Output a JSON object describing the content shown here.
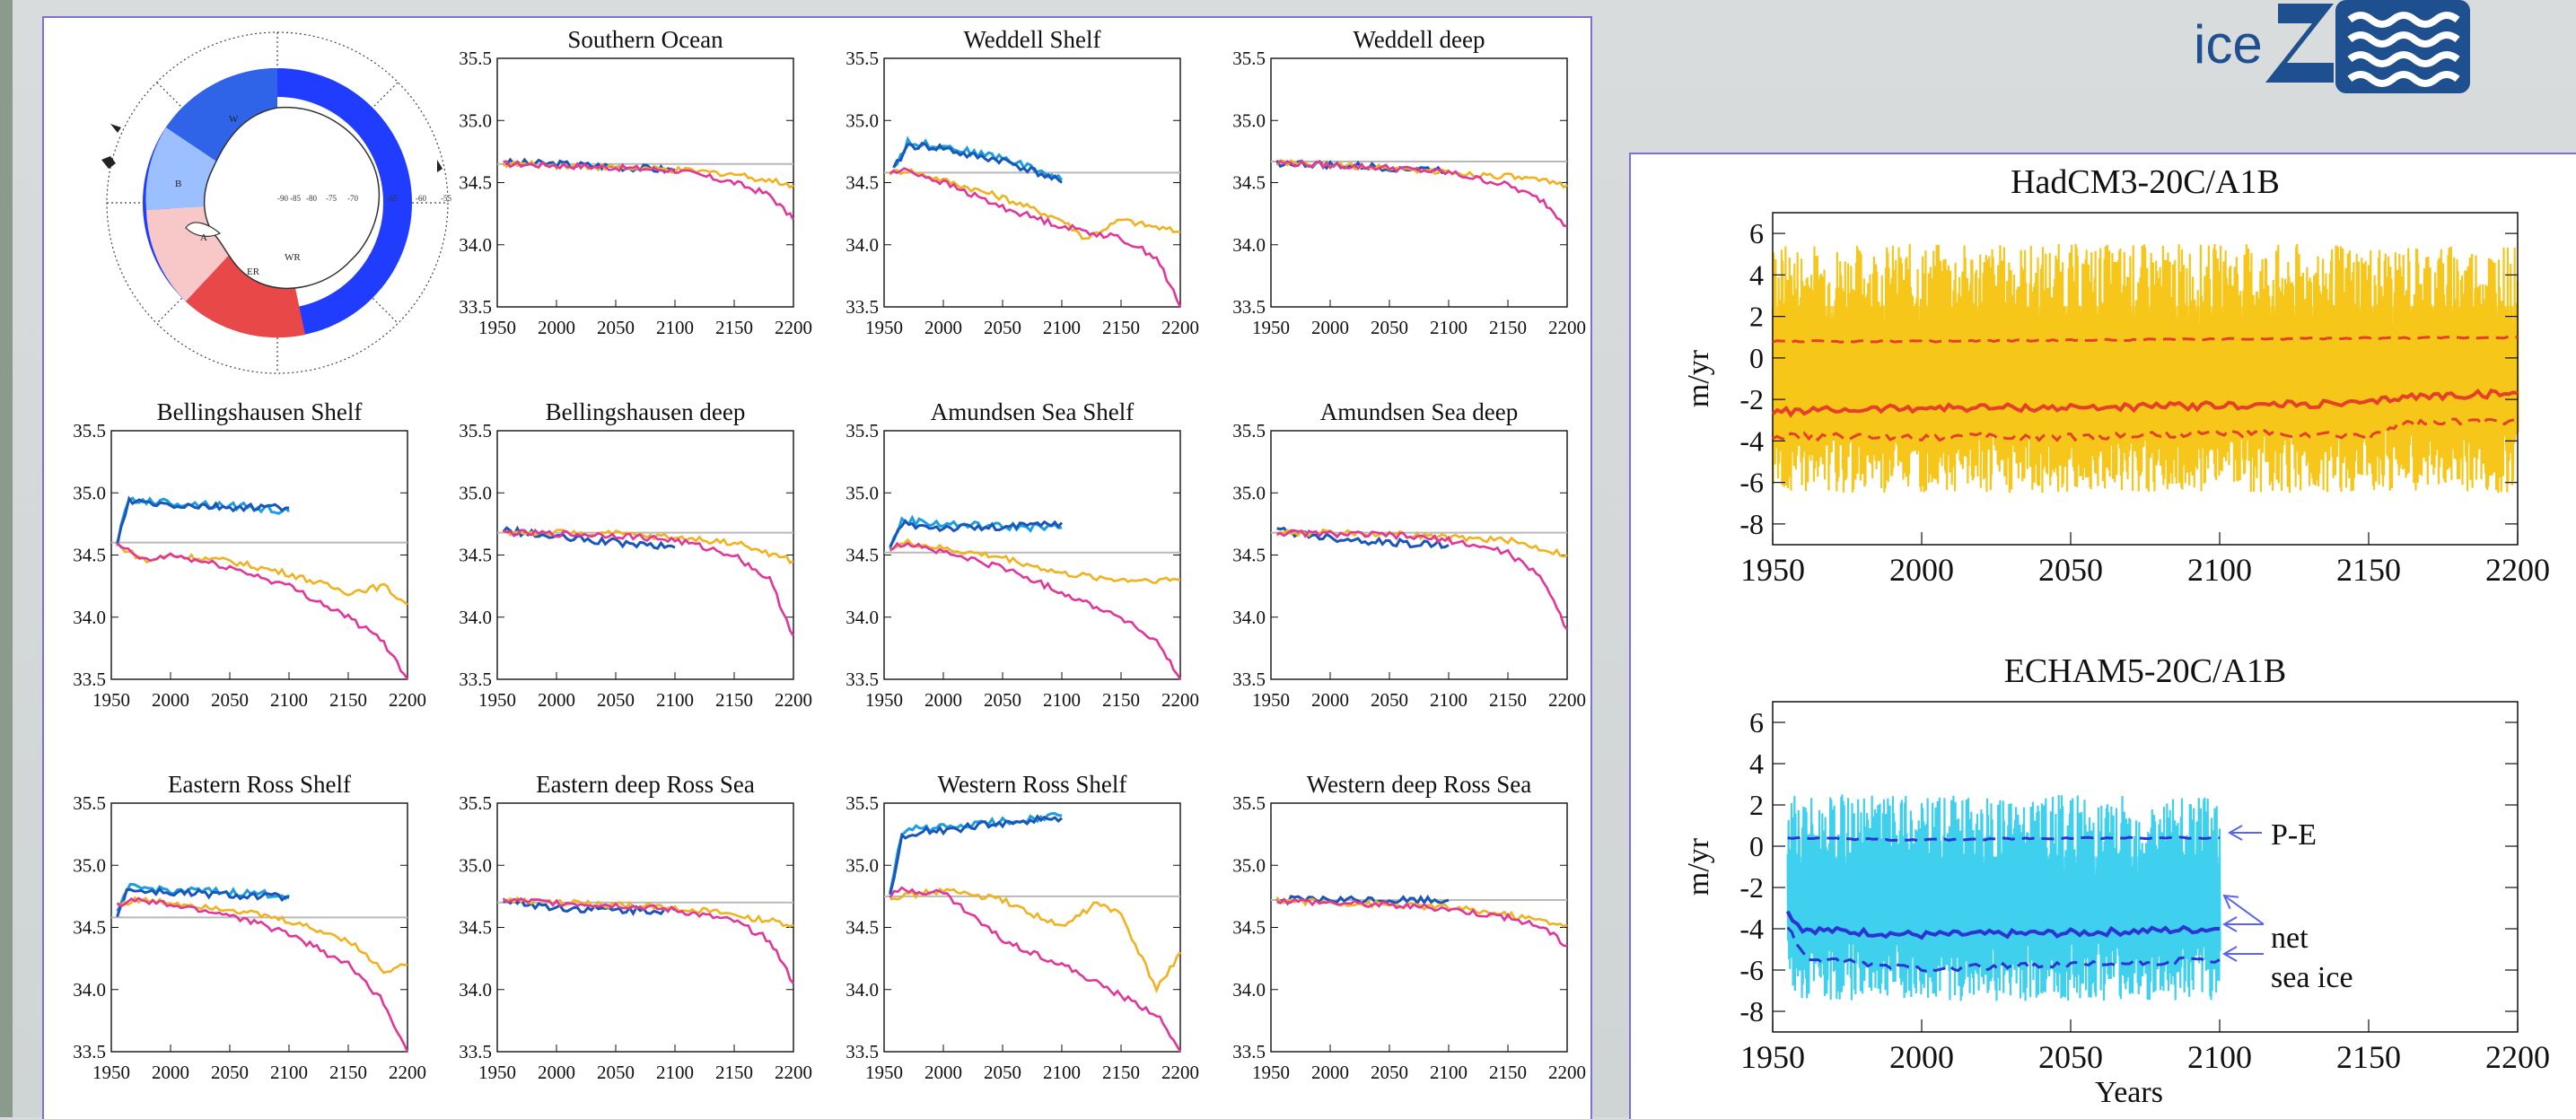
{
  "colors": {
    "historical_model": "#1c9fe0",
    "historical_obs": "#1a55b8",
    "scenario_a": "#f0b21e",
    "scenario_b": "#e0389a",
    "initial": "#e03a2a",
    "reference": "#b9b9b9",
    "had_band": "#f6c61a",
    "had_lines": "#e4402a",
    "echam_band": "#3fd0ee",
    "echam_lines": "#2a35d4",
    "map_ocean": "#1f3cff",
    "map_weddell": "#2f63e8",
    "map_bell": "#9cc0ff",
    "map_amundsen": "#f8c8c8",
    "map_ross": "#e84848"
  },
  "map": {
    "sector_labels": [
      "W",
      "B",
      "A",
      "ER",
      "WR"
    ],
    "lat_labels": [
      "-90",
      "-85",
      "-80",
      "-75",
      "-70",
      "-65",
      "-60",
      "-55"
    ]
  },
  "small_axes": {
    "y_ticks": [
      "35.5",
      "35.0",
      "34.5",
      "34.0",
      "33.5"
    ],
    "x_ticks": [
      "1950",
      "2000",
      "2050",
      "2100",
      "2150",
      "2200"
    ]
  },
  "chart_data": [
    {
      "type": "line",
      "title": "Southern Ocean",
      "xlim": [
        1950,
        2200
      ],
      "ylim": [
        33.5,
        35.5
      ],
      "ref": 34.65,
      "series": [
        {
          "key": "historical_obs",
          "x": [
            1955,
            2000,
            2050,
            2100
          ],
          "values": [
            34.66,
            34.65,
            34.63,
            34.6
          ]
        },
        {
          "key": "scenario_a",
          "x": [
            1955,
            2000,
            2050,
            2100,
            2150,
            2200
          ],
          "values": [
            34.65,
            34.64,
            34.62,
            34.6,
            34.57,
            34.48
          ]
        },
        {
          "key": "scenario_b",
          "x": [
            1955,
            2000,
            2050,
            2100,
            2150,
            2180,
            2200
          ],
          "values": [
            34.65,
            34.64,
            34.62,
            34.6,
            34.5,
            34.4,
            34.2
          ]
        }
      ]
    },
    {
      "type": "line",
      "title": "Weddell Shelf",
      "xlim": [
        1950,
        2200
      ],
      "ylim": [
        33.5,
        35.5
      ],
      "ref": 34.58,
      "series": [
        {
          "key": "historical_model",
          "x": [
            1958,
            1970,
            2000,
            2020,
            2050,
            2080,
            2100
          ],
          "values": [
            34.62,
            34.82,
            34.8,
            34.75,
            34.7,
            34.6,
            34.52
          ]
        },
        {
          "key": "historical_obs",
          "x": [
            1958,
            1970,
            2000,
            2020,
            2050,
            2080,
            2100
          ],
          "values": [
            34.6,
            34.8,
            34.78,
            34.72,
            34.68,
            34.58,
            34.5
          ]
        },
        {
          "key": "scenario_a",
          "x": [
            1955,
            1970,
            2000,
            2050,
            2100,
            2120,
            2150,
            2200
          ],
          "values": [
            34.58,
            34.6,
            34.52,
            34.38,
            34.2,
            34.05,
            34.2,
            34.1
          ]
        },
        {
          "key": "scenario_b",
          "x": [
            1955,
            1970,
            2000,
            2050,
            2100,
            2150,
            2180,
            2200
          ],
          "values": [
            34.58,
            34.6,
            34.5,
            34.3,
            34.15,
            34.05,
            33.9,
            33.5
          ]
        }
      ]
    },
    {
      "type": "line",
      "title": "Weddell deep",
      "xlim": [
        1950,
        2200
      ],
      "ylim": [
        33.5,
        35.5
      ],
      "ref": 34.67,
      "series": [
        {
          "key": "historical_obs",
          "x": [
            1955,
            2000,
            2050,
            2100
          ],
          "values": [
            34.66,
            34.64,
            34.62,
            34.6
          ]
        },
        {
          "key": "scenario_a",
          "x": [
            1955,
            2000,
            2050,
            2100,
            2150,
            2200
          ],
          "values": [
            34.66,
            34.64,
            34.62,
            34.58,
            34.55,
            34.48
          ]
        },
        {
          "key": "scenario_b",
          "x": [
            1955,
            2000,
            2050,
            2100,
            2150,
            2180,
            2200
          ],
          "values": [
            34.66,
            34.64,
            34.62,
            34.58,
            34.48,
            34.35,
            34.15
          ]
        }
      ]
    },
    {
      "type": "line",
      "title": "Bellingshausen Shelf",
      "xlim": [
        1950,
        2200
      ],
      "ylim": [
        33.5,
        35.5
      ],
      "ref": 34.6,
      "series": [
        {
          "key": "historical_model",
          "x": [
            1955,
            1965,
            2000,
            2050,
            2100
          ],
          "values": [
            34.6,
            34.95,
            34.92,
            34.9,
            34.85
          ]
        },
        {
          "key": "historical_obs",
          "x": [
            1955,
            1965,
            2000,
            2050,
            2100
          ],
          "values": [
            34.6,
            34.93,
            34.9,
            34.88,
            34.88
          ]
        },
        {
          "key": "scenario_a",
          "x": [
            1955,
            1980,
            2000,
            2050,
            2100,
            2150,
            2180,
            2200
          ],
          "values": [
            34.58,
            34.45,
            34.5,
            34.45,
            34.35,
            34.2,
            34.25,
            34.1
          ]
        },
        {
          "key": "scenario_b",
          "x": [
            1955,
            1980,
            2000,
            2050,
            2100,
            2150,
            2180,
            2200
          ],
          "values": [
            34.58,
            34.45,
            34.5,
            34.4,
            34.25,
            34.0,
            33.8,
            33.5
          ]
        }
      ]
    },
    {
      "type": "line",
      "title": "Bellingshausen deep",
      "xlim": [
        1950,
        2200
      ],
      "ylim": [
        33.5,
        35.5
      ],
      "ref": 34.68,
      "series": [
        {
          "key": "historical_obs",
          "x": [
            1955,
            2000,
            2050,
            2100
          ],
          "values": [
            34.7,
            34.64,
            34.6,
            34.56
          ]
        },
        {
          "key": "scenario_a",
          "x": [
            1955,
            2000,
            2050,
            2100,
            2150,
            2200
          ],
          "values": [
            34.68,
            34.68,
            34.67,
            34.64,
            34.6,
            34.45
          ]
        },
        {
          "key": "scenario_b",
          "x": [
            1955,
            2000,
            2050,
            2100,
            2150,
            2180,
            2200
          ],
          "values": [
            34.68,
            34.67,
            34.66,
            34.62,
            34.5,
            34.3,
            33.85
          ]
        }
      ]
    },
    {
      "type": "line",
      "title": "Amundsen Sea Shelf",
      "xlim": [
        1950,
        2200
      ],
      "ylim": [
        33.5,
        35.5
      ],
      "ref": 34.52,
      "series": [
        {
          "key": "historical_model",
          "x": [
            1955,
            1965,
            2000,
            2050,
            2100
          ],
          "values": [
            34.55,
            34.78,
            34.75,
            34.73,
            34.72
          ]
        },
        {
          "key": "historical_obs",
          "x": [
            1955,
            1965,
            2000,
            2050,
            2100
          ],
          "values": [
            34.55,
            34.75,
            34.72,
            34.72,
            34.76
          ]
        },
        {
          "key": "scenario_a",
          "x": [
            1955,
            1970,
            2000,
            2050,
            2100,
            2150,
            2200
          ],
          "values": [
            34.55,
            34.6,
            34.55,
            34.48,
            34.35,
            34.3,
            34.3
          ]
        },
        {
          "key": "scenario_b",
          "x": [
            1955,
            1970,
            2000,
            2050,
            2100,
            2150,
            2180,
            2200
          ],
          "values": [
            34.55,
            34.6,
            34.52,
            34.4,
            34.2,
            34.0,
            33.8,
            33.5
          ]
        }
      ]
    },
    {
      "type": "line",
      "title": "Amundsen Sea deep",
      "xlim": [
        1950,
        2200
      ],
      "ylim": [
        33.5,
        35.5
      ],
      "ref": 34.68,
      "series": [
        {
          "key": "historical_obs",
          "x": [
            1955,
            2000,
            2050,
            2100
          ],
          "values": [
            34.7,
            34.64,
            34.6,
            34.58
          ]
        },
        {
          "key": "scenario_a",
          "x": [
            1955,
            2000,
            2050,
            2100,
            2150,
            2200
          ],
          "values": [
            34.68,
            34.68,
            34.67,
            34.64,
            34.62,
            34.5
          ]
        },
        {
          "key": "scenario_b",
          "x": [
            1955,
            2000,
            2050,
            2100,
            2150,
            2180,
            2200
          ],
          "values": [
            34.68,
            34.67,
            34.66,
            34.62,
            34.52,
            34.3,
            33.9
          ]
        }
      ]
    },
    {
      "type": "line",
      "title": "Eastern Ross Shelf",
      "xlim": [
        1950,
        2200
      ],
      "ylim": [
        33.5,
        35.5
      ],
      "ref": 34.58,
      "series": [
        {
          "key": "historical_model",
          "x": [
            1955,
            1963,
            2000,
            2050,
            2100
          ],
          "values": [
            34.6,
            34.82,
            34.8,
            34.78,
            34.76
          ]
        },
        {
          "key": "historical_obs",
          "x": [
            1955,
            1963,
            2000,
            2050,
            2100
          ],
          "values": [
            34.6,
            34.8,
            34.78,
            34.76,
            34.74
          ]
        },
        {
          "key": "scenario_a",
          "x": [
            1955,
            1970,
            2000,
            2050,
            2100,
            2150,
            2180,
            2200
          ],
          "values": [
            34.68,
            34.72,
            34.7,
            34.65,
            34.55,
            34.4,
            34.15,
            34.2
          ]
        },
        {
          "key": "scenario_b",
          "x": [
            1955,
            1970,
            2000,
            2050,
            2100,
            2150,
            2180,
            2200
          ],
          "values": [
            34.68,
            34.72,
            34.68,
            34.6,
            34.45,
            34.2,
            33.9,
            33.5
          ]
        }
      ]
    },
    {
      "type": "line",
      "title": "Eastern deep Ross Sea",
      "xlim": [
        1950,
        2200
      ],
      "ylim": [
        33.5,
        35.5
      ],
      "ref": 34.7,
      "series": [
        {
          "key": "historical_obs",
          "x": [
            1955,
            2000,
            2050,
            2100
          ],
          "values": [
            34.72,
            34.66,
            34.64,
            34.64
          ]
        },
        {
          "key": "scenario_a",
          "x": [
            1955,
            2000,
            2050,
            2100,
            2150,
            2200
          ],
          "values": [
            34.72,
            34.7,
            34.68,
            34.66,
            34.6,
            34.52
          ]
        },
        {
          "key": "scenario_b",
          "x": [
            1955,
            2000,
            2050,
            2100,
            2150,
            2180,
            2200
          ],
          "values": [
            34.72,
            34.7,
            34.68,
            34.64,
            34.55,
            34.4,
            34.05
          ]
        }
      ]
    },
    {
      "type": "line",
      "title": "Western Ross Shelf",
      "xlim": [
        1950,
        2200
      ],
      "ylim": [
        33.5,
        35.5
      ],
      "ref": 34.75,
      "series": [
        {
          "key": "historical_model",
          "x": [
            1955,
            1965,
            1980,
            2000,
            2050,
            2100
          ],
          "values": [
            34.78,
            35.25,
            35.3,
            35.3,
            35.35,
            35.4
          ]
        },
        {
          "key": "historical_obs",
          "x": [
            1955,
            1965,
            1980,
            2000,
            2050,
            2100
          ],
          "values": [
            34.75,
            35.22,
            35.28,
            35.28,
            35.34,
            35.38
          ]
        },
        {
          "key": "scenario_a",
          "x": [
            1955,
            1965,
            2000,
            2050,
            2100,
            2130,
            2150,
            2180,
            2200
          ],
          "values": [
            34.75,
            34.75,
            34.8,
            34.72,
            34.5,
            34.7,
            34.6,
            34.0,
            34.3
          ]
        },
        {
          "key": "scenario_b",
          "x": [
            1955,
            1965,
            2000,
            2050,
            2100,
            2150,
            2180,
            2200
          ],
          "values": [
            34.75,
            34.8,
            34.78,
            34.4,
            34.2,
            33.95,
            33.8,
            33.5
          ]
        }
      ]
    },
    {
      "type": "line",
      "title": "Western deep Ross Sea",
      "xlim": [
        1950,
        2200
      ],
      "ylim": [
        33.5,
        35.5
      ],
      "ref": 34.72,
      "series": [
        {
          "key": "historical_obs",
          "x": [
            1955,
            2000,
            2050,
            2100
          ],
          "values": [
            34.72,
            34.72,
            34.72,
            34.72
          ]
        },
        {
          "key": "scenario_a",
          "x": [
            1955,
            2000,
            2050,
            2100,
            2150,
            2200
          ],
          "values": [
            34.72,
            34.7,
            34.68,
            34.66,
            34.6,
            34.52
          ]
        },
        {
          "key": "scenario_b",
          "x": [
            1955,
            2000,
            2050,
            2100,
            2150,
            2180,
            2200
          ],
          "values": [
            34.72,
            34.7,
            34.68,
            34.65,
            34.58,
            34.5,
            34.35
          ]
        }
      ]
    },
    {
      "type": "line",
      "title": "HadCM3-20C/A1B",
      "xlabel": "",
      "ylabel": "m/yr",
      "xlim": [
        1950,
        2200
      ],
      "ylim": [
        -9,
        7
      ],
      "y_ticks": [
        6,
        4,
        2,
        0,
        -2,
        -4,
        -6,
        -8
      ],
      "x_ticks": [
        1950,
        2000,
        2050,
        2100,
        2150,
        2200
      ],
      "band": {
        "x_range": [
          1950,
          2200
        ],
        "low": -6.5,
        "high": 5.5
      },
      "series": [
        {
          "key": "pe",
          "style": "dashed",
          "x": [
            1950,
            2000,
            2050,
            2100,
            2150,
            2200
          ],
          "values": [
            0.8,
            0.8,
            0.85,
            0.9,
            0.95,
            1.0
          ]
        },
        {
          "key": "net",
          "style": "solid",
          "x": [
            1950,
            2000,
            2050,
            2100,
            2150,
            2160,
            2200
          ],
          "values": [
            -2.6,
            -2.4,
            -2.4,
            -2.3,
            -2.2,
            -1.9,
            -1.7
          ]
        },
        {
          "key": "sea_ice",
          "style": "dashed",
          "x": [
            1950,
            2000,
            2050,
            2100,
            2150,
            2160,
            2200
          ],
          "values": [
            -3.8,
            -3.8,
            -3.8,
            -3.6,
            -3.8,
            -3.2,
            -3.0
          ]
        }
      ]
    },
    {
      "type": "line",
      "title": "ECHAM5-20C/A1B",
      "xlabel": "Years",
      "ylabel": "m/yr",
      "xlim": [
        1950,
        2200
      ],
      "ylim": [
        -9,
        7
      ],
      "y_ticks": [
        6,
        4,
        2,
        0,
        -2,
        -4,
        -6,
        -8
      ],
      "x_ticks": [
        1950,
        2000,
        2050,
        2100,
        2150,
        2200
      ],
      "band": {
        "x_range": [
          1955,
          2100
        ],
        "low": -7.5,
        "high": 2.5
      },
      "series": [
        {
          "key": "pe",
          "style": "dashed",
          "x": [
            1955,
            2000,
            2050,
            2100
          ],
          "values": [
            0.4,
            0.3,
            0.4,
            0.4
          ]
        },
        {
          "key": "net",
          "style": "solid",
          "x": [
            1955,
            1960,
            1970,
            2000,
            2050,
            2100
          ],
          "values": [
            -3.2,
            -4.0,
            -4.1,
            -4.3,
            -4.2,
            -4.0
          ]
        },
        {
          "key": "sea_ice",
          "style": "dashed",
          "x": [
            1955,
            1962,
            1970,
            2000,
            2050,
            2100
          ],
          "values": [
            -4.0,
            -5.5,
            -5.6,
            -5.9,
            -5.8,
            -5.5
          ]
        }
      ]
    }
  ],
  "annotations": {
    "pe": "P-E",
    "net": "net",
    "sea_ice": "sea ice"
  },
  "logo": {
    "text": "ice"
  }
}
